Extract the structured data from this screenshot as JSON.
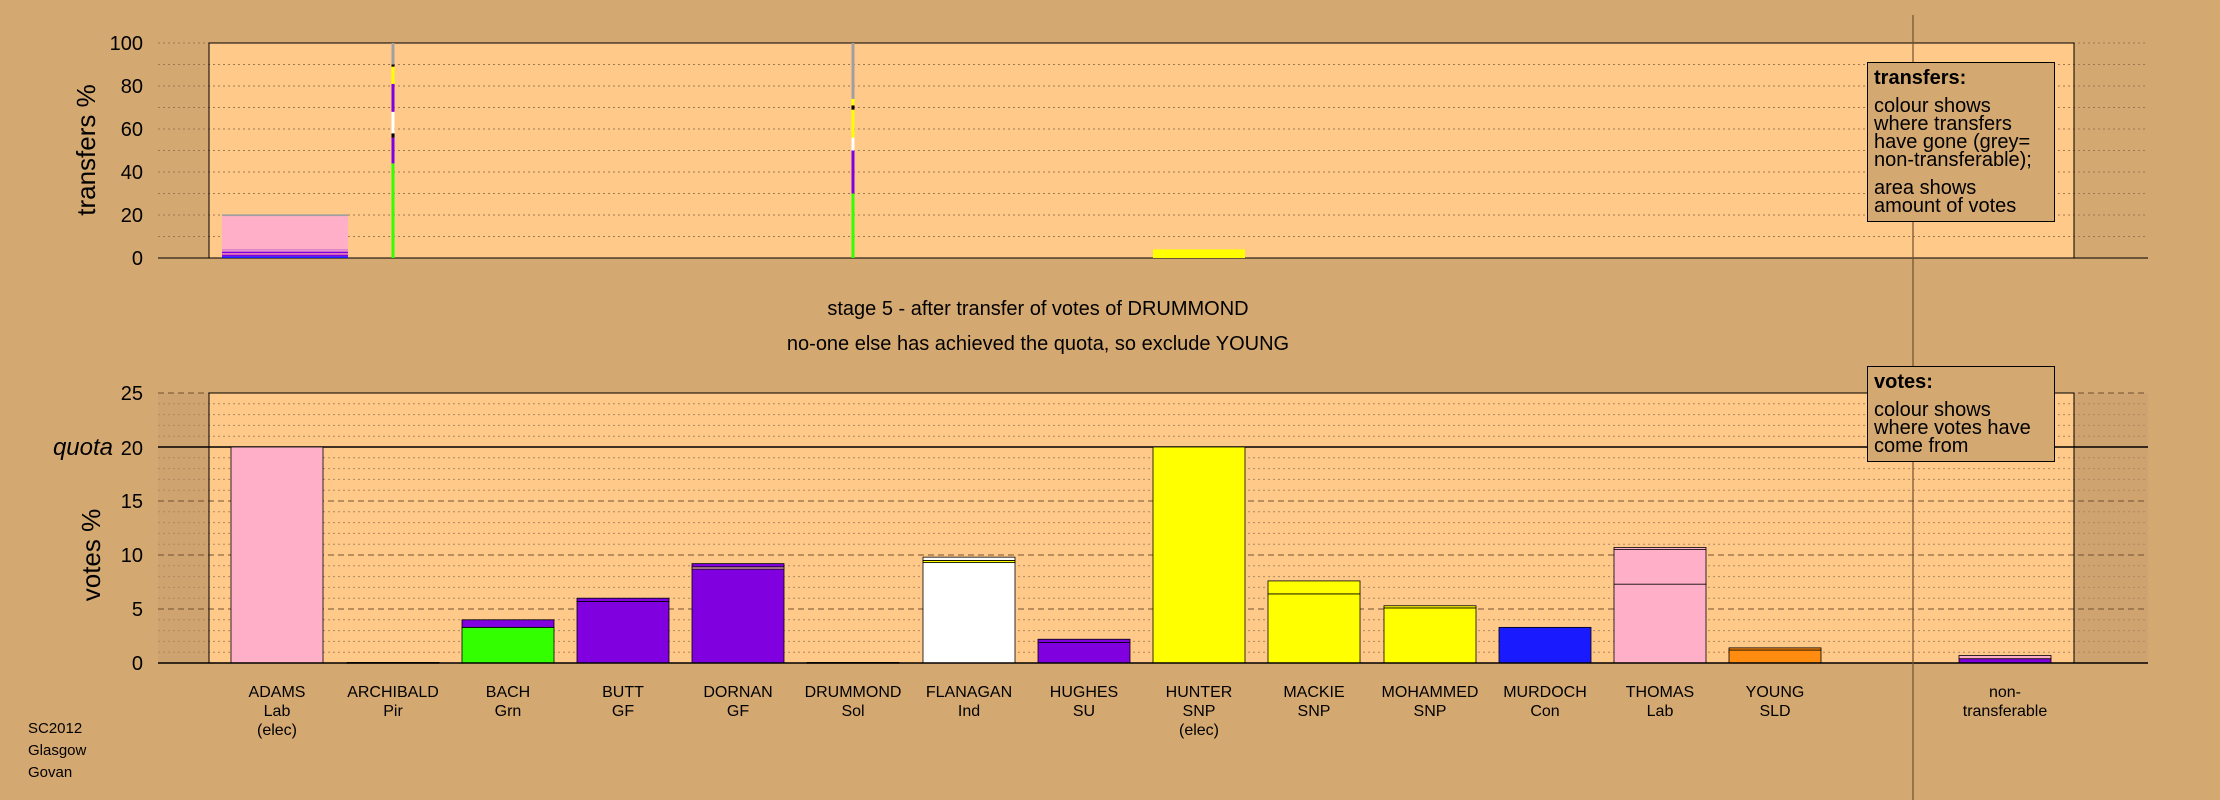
{
  "chart_data": [
    {
      "type": "bar",
      "ylabel": "transfers %",
      "ylim": [
        0,
        100
      ],
      "yticks": [
        "0",
        "20",
        "40",
        "60",
        "80",
        "100"
      ],
      "categories": [
        "ADAMS",
        "ARCHIBALD",
        "BACH",
        "BUTT",
        "DORNAN",
        "DRUMMOND",
        "FLANAGAN",
        "HUGHES",
        "HUNTER",
        "MACKIE",
        "MOHAMMED",
        "MURDOCH",
        "THOMAS",
        "YOUNG",
        "non-transferable"
      ],
      "transfer_stacks": [
        {
          "candidate": "ADAMS",
          "segments": [
            {
              "value": 0.8,
              "color": "#1a1aff"
            },
            {
              "value": 0.8,
              "color": "#8000e0"
            },
            {
              "value": 0.6,
              "color": "#ff9aa8"
            },
            {
              "value": 0.8,
              "color": "#8000e0"
            },
            {
              "value": 0.5,
              "color": "#ffb0c8"
            },
            {
              "value": 0.6,
              "color": "#d070d0"
            },
            {
              "value": 15.4,
              "color": "#ffb0c8"
            },
            {
              "value": 0.8,
              "color": "#a0a0a0"
            }
          ]
        },
        {
          "candidate": "ARCHIBALD",
          "segments": [
            {
              "value": 44,
              "color": "#33ff00"
            },
            {
              "value": 12,
              "color": "#8000e0"
            },
            {
              "value": 2,
              "color": "#000000"
            },
            {
              "value": 10,
              "color": "#ffffff"
            },
            {
              "value": 13,
              "color": "#8000e0"
            },
            {
              "value": 8,
              "color": "#ffff00"
            },
            {
              "value": 1,
              "color": "#000000"
            },
            {
              "value": 10,
              "color": "#a0a0a0"
            }
          ]
        },
        {
          "candidate": "DRUMMOND",
          "segments": [
            {
              "value": 30,
              "color": "#33ff00"
            },
            {
              "value": 20,
              "color": "#8000e0"
            },
            {
              "value": 6,
              "color": "#ffffff"
            },
            {
              "value": 13,
              "color": "#ffff00"
            },
            {
              "value": 2,
              "color": "#000000"
            },
            {
              "value": 3,
              "color": "#ffff00"
            },
            {
              "value": 26,
              "color": "#a0a0a0"
            }
          ]
        },
        {
          "candidate": "HUNTER",
          "segments": [
            {
              "value": 4,
              "color": "#ffff00"
            }
          ]
        }
      ]
    },
    {
      "type": "bar",
      "ylabel": "votes %",
      "ylim": [
        0,
        25
      ],
      "yticks": [
        "0",
        "5",
        "10",
        "15",
        "20",
        "25"
      ],
      "quota": 20,
      "quota_label": "quota",
      "categories": [
        "ADAMS",
        "ARCHIBALD",
        "BACH",
        "BUTT",
        "DORNAN",
        "DRUMMOND",
        "FLANAGAN",
        "HUGHES",
        "HUNTER",
        "MACKIE",
        "MOHAMMED",
        "MURDOCH",
        "THOMAS",
        "YOUNG",
        "non-transferable"
      ],
      "category_labels": [
        [
          "ADAMS",
          "Lab",
          "(elec)"
        ],
        [
          "ARCHIBALD",
          "Pir"
        ],
        [
          "BACH",
          "Grn"
        ],
        [
          "BUTT",
          "GF"
        ],
        [
          "DORNAN",
          "GF"
        ],
        [
          "DRUMMOND",
          "Sol"
        ],
        [
          "FLANAGAN",
          "Ind"
        ],
        [
          "HUGHES",
          "SU"
        ],
        [
          "HUNTER",
          "SNP",
          "(elec)"
        ],
        [
          "MACKIE",
          "SNP"
        ],
        [
          "MOHAMMED",
          "SNP"
        ],
        [
          "MURDOCH",
          "Con"
        ],
        [
          "THOMAS",
          "Lab"
        ],
        [
          "YOUNG",
          "SLD"
        ],
        [
          "non-",
          "transferable"
        ]
      ],
      "vote_stacks": [
        [
          {
            "value": 20.0,
            "color": "#ffb0c8"
          }
        ],
        [
          {
            "value": 0.05,
            "color": "#808080"
          }
        ],
        [
          {
            "value": 3.3,
            "color": "#33ff00"
          },
          {
            "value": 0.7,
            "color": "#8000e0"
          }
        ],
        [
          {
            "value": 5.7,
            "color": "#8000e0"
          },
          {
            "value": 0.3,
            "color": "#8000e0"
          }
        ],
        [
          {
            "value": 8.7,
            "color": "#8000e0"
          },
          {
            "value": 0.2,
            "color": "#ffb0c8"
          },
          {
            "value": 0.3,
            "color": "#8000e0"
          }
        ],
        [
          {
            "value": 0.05,
            "color": "#808080"
          }
        ],
        [
          {
            "value": 9.3,
            "color": "#ffffff"
          },
          {
            "value": 0.2,
            "color": "#ffff00"
          },
          {
            "value": 0.3,
            "color": "#ffffff"
          }
        ],
        [
          {
            "value": 1.9,
            "color": "#8000e0"
          },
          {
            "value": 0.3,
            "color": "#8000e0"
          }
        ],
        [
          {
            "value": 20.0,
            "color": "#ffff00"
          }
        ],
        [
          {
            "value": 6.4,
            "color": "#ffff00"
          },
          {
            "value": 1.2,
            "color": "#ffff00"
          }
        ],
        [
          {
            "value": 5.1,
            "color": "#ffff00"
          },
          {
            "value": 0.2,
            "color": "#ffff00"
          }
        ],
        [
          {
            "value": 3.3,
            "color": "#1a1aff"
          }
        ],
        [
          {
            "value": 7.3,
            "color": "#ffb0c8"
          },
          {
            "value": 3.2,
            "color": "#ffb0c8"
          },
          {
            "value": 0.2,
            "color": "#ffb0c8"
          }
        ],
        [
          {
            "value": 1.2,
            "color": "#ff8c10"
          },
          {
            "value": 0.2,
            "color": "#ff8c10"
          }
        ],
        [
          {
            "value": 0.4,
            "color": "#8000e0"
          },
          {
            "value": 0.3,
            "color": "#ffb0c8"
          }
        ]
      ]
    }
  ],
  "captions": {
    "stage": "stage 5 - after transfer of votes of DRUMMOND",
    "exclude": "no-one else has achieved the quota, so exclude YOUNG"
  },
  "legend_transfers": {
    "title": "transfers:",
    "line1": "colour shows where transfers have gone (grey= non-transferable);",
    "line2": "area shows amount of votes"
  },
  "legend_votes": {
    "title": "votes:",
    "line1": "colour shows where votes have come from"
  },
  "footer": [
    "SC2012",
    "Glasgow",
    "Govan"
  ],
  "colors": {
    "background": "#d4a871",
    "plot_area": "#ffc98a"
  }
}
